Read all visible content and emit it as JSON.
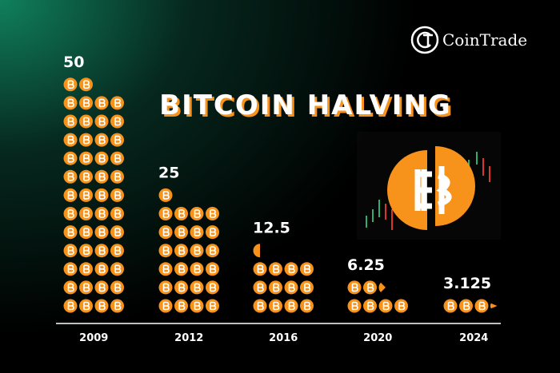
{
  "chart_data": {
    "type": "pictogram",
    "title": "BITCOIN HALVING",
    "brand": "CoinTrade",
    "categories": [
      "2009",
      "2012",
      "2016",
      "2020",
      "2024"
    ],
    "values": [
      50,
      25,
      12.5,
      6.25,
      3.125
    ],
    "color": "#f7931a"
  }
}
